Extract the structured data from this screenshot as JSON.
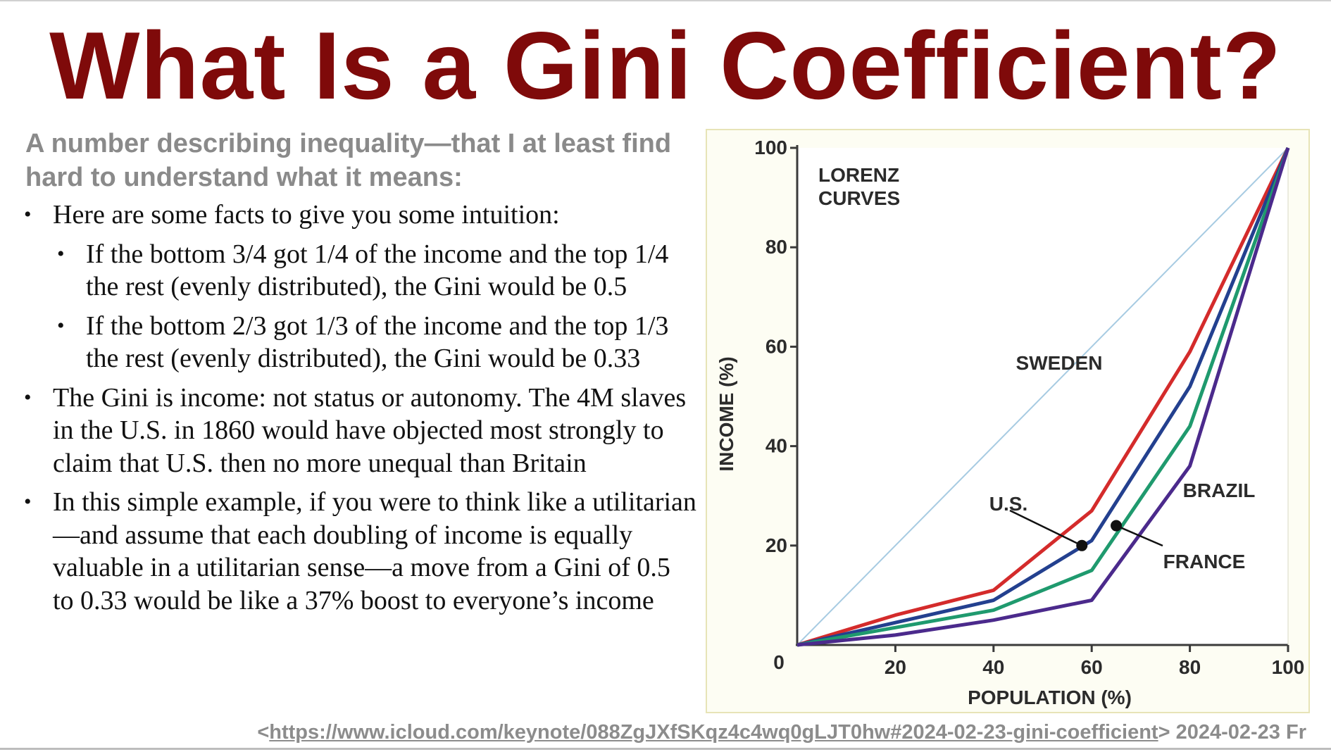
{
  "slide": {
    "title": "What Is a Gini Coefficient?",
    "subtitle": "A number describing inequality—that I at least find hard to understand what it means:",
    "bullets": [
      {
        "level": 1,
        "text": "Here are some facts to give you some intuition:"
      },
      {
        "level": 2,
        "text": "If the bottom 3/4 got 1/4 of the income and the top 1/4 the rest (evenly distributed), the Gini would be 0.5"
      },
      {
        "level": 2,
        "text": "If the bottom 2/3 got 1/3 of the income and the top 1/3 the rest (evenly distributed), the Gini would be 0.33"
      },
      {
        "level": 1,
        "text": "The Gini is income: not status or autonomy. The 4M slaves in the U.S. in 1860 would have objected most strongly to claim that U.S. then no more unequal than Britain"
      },
      {
        "level": 1,
        "text": "In this simple example, if you were to think like a utilitarian—and assume that each doubling of income is equally valuable in a utilitarian sense—a move from a Gini of 0.5 to 0.33 would be like a 37% boost to everyone’s income"
      }
    ],
    "bullet_glyph": "•"
  },
  "footer": {
    "prefix": "<",
    "link": "https://www.icloud.com/keynote/088ZgJXfSKqz4c4wq0gLJT0hw#2024-02-23-gini-coefficient",
    "suffix": "> 2024-02-23 Fr"
  },
  "chart_data": {
    "type": "line",
    "title": "LORENZ CURVES",
    "xlabel": "POPULATION (%)",
    "ylabel": "INCOME (%)",
    "xlim": [
      0,
      100
    ],
    "ylim": [
      0,
      100
    ],
    "x_ticks": [
      20,
      40,
      60,
      80,
      100
    ],
    "y_ticks": [
      20,
      40,
      60,
      80,
      100
    ],
    "origin_label": "0",
    "grid": false,
    "series": [
      {
        "name": "SWEDEN",
        "color": "#d42b2b",
        "points": [
          [
            0,
            0
          ],
          [
            20,
            6
          ],
          [
            40,
            11
          ],
          [
            60,
            27
          ],
          [
            80,
            59
          ],
          [
            100,
            100
          ]
        ]
      },
      {
        "name": "U.S.",
        "color": "#23408f",
        "points": [
          [
            0,
            0
          ],
          [
            20,
            4.5
          ],
          [
            40,
            9
          ],
          [
            60,
            21
          ],
          [
            80,
            52
          ],
          [
            100,
            100
          ]
        ]
      },
      {
        "name": "FRANCE",
        "color": "#1f9a6e",
        "points": [
          [
            0,
            0
          ],
          [
            20,
            3.5
          ],
          [
            40,
            7
          ],
          [
            60,
            15
          ],
          [
            80,
            44
          ],
          [
            100,
            100
          ]
        ]
      },
      {
        "name": "BRAZIL",
        "color": "#4b2a8c",
        "points": [
          [
            0,
            0
          ],
          [
            20,
            2
          ],
          [
            40,
            5
          ],
          [
            60,
            9
          ],
          [
            80,
            36
          ],
          [
            100,
            100
          ]
        ]
      }
    ],
    "equality_line": {
      "color": "#a7cbe2",
      "points": [
        [
          0,
          0
        ],
        [
          100,
          100
        ]
      ]
    },
    "markers": [
      {
        "series": "U.S.",
        "x": 58,
        "y": 20
      },
      {
        "series": "FRANCE",
        "x": 65,
        "y": 24
      }
    ]
  }
}
